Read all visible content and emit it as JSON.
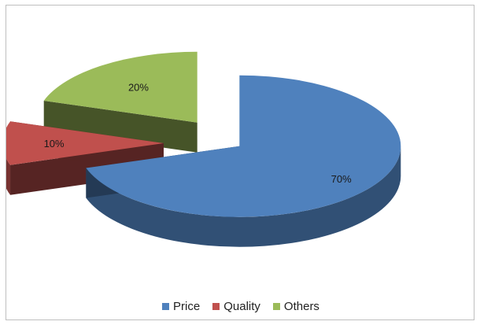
{
  "chart_data": {
    "type": "pie",
    "style": "3d-exploded",
    "categories": [
      "Price",
      "Quality",
      "Others"
    ],
    "values": [
      70,
      10,
      20
    ],
    "labels": [
      "70%",
      "10%",
      "20%"
    ],
    "colors": [
      "#4F81BD",
      "#C0504D",
      "#9BBB59"
    ],
    "legend_position": "bottom",
    "title": ""
  }
}
